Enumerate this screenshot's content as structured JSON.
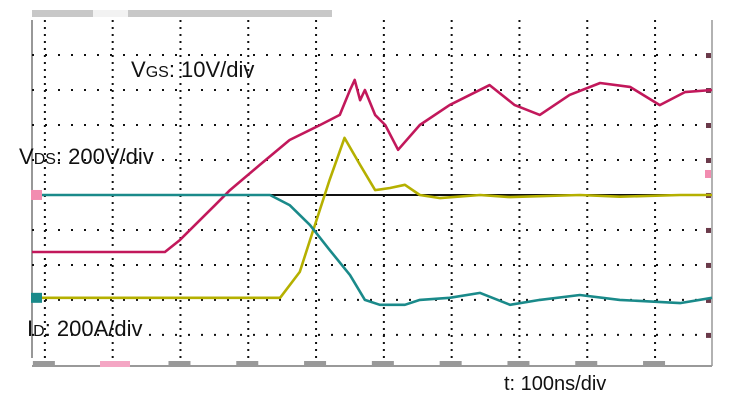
{
  "chart_data": {
    "type": "line",
    "title": "",
    "xlabel": "",
    "ylabel": "",
    "xlim": [
      -19,
      984
    ],
    "ylim": [
      -4.66,
      5.23
    ],
    "grid": true,
    "x_gridlines_ns": [
      0,
      100,
      200,
      300,
      400,
      500,
      600,
      700,
      800,
      900
    ],
    "y_gridlines_div": [
      4,
      3,
      2,
      1,
      0,
      -1,
      -2,
      -3,
      -4
    ],
    "colors": {
      "VGS": "#c2185b",
      "VDS": "#b5b000",
      "ID": "#1a8a8a",
      "grid": "#111111",
      "background": "#ffffff"
    },
    "annotations": {
      "vgs": {
        "main": "V",
        "sub": "GS",
        "rest": ": 10V/div"
      },
      "vds": {
        "main": "V",
        "sub": "DS",
        "rest": ": 200V/div"
      },
      "id": {
        "main": "I",
        "sub": "D",
        "rest": ": 200A/div"
      },
      "time": "t: 100ns/div"
    },
    "series": [
      {
        "key": "VGS",
        "x": [
          -19,
          177,
          199,
          251,
          273,
          317,
          361,
          406,
          435,
          450,
          457,
          465,
          472,
          487,
          502,
          521,
          553,
          597,
          656,
          693,
          730,
          774,
          819,
          863,
          907,
          944,
          984
        ],
        "y": [
          -1.63,
          -1.63,
          -1.29,
          -0.29,
          0.14,
          0.86,
          1.57,
          2.0,
          2.29,
          3.0,
          3.29,
          2.71,
          3.0,
          2.29,
          2.0,
          1.29,
          2.0,
          2.57,
          3.14,
          2.57,
          2.29,
          2.86,
          3.2,
          3.09,
          2.57,
          2.94,
          3.0
        ]
      },
      {
        "key": "VDS",
        "x": [
          -19,
          347,
          376,
          391,
          420,
          442,
          465,
          487,
          509,
          531,
          553,
          583,
          642,
          686,
          789,
          848,
          937,
          984
        ],
        "y": [
          -2.94,
          -2.94,
          -2.2,
          -1.29,
          0.43,
          1.63,
          0.86,
          0.14,
          0.2,
          0.29,
          0.0,
          -0.09,
          0.0,
          -0.06,
          0.0,
          -0.05,
          0.0,
          0.0
        ]
      },
      {
        "key": "ID",
        "x": [
          -19,
          332,
          361,
          391,
          420,
          450,
          472,
          494,
          531,
          553,
          597,
          642,
          686,
          730,
          789,
          848,
          937,
          984
        ],
        "y": [
          0,
          0,
          -0.29,
          -0.86,
          -1.57,
          -2.29,
          -3.0,
          -3.14,
          -3.14,
          -3.0,
          -2.94,
          -2.8,
          -3.14,
          -3.0,
          -2.86,
          -3.0,
          -3.09,
          -2.94
        ]
      }
    ]
  }
}
